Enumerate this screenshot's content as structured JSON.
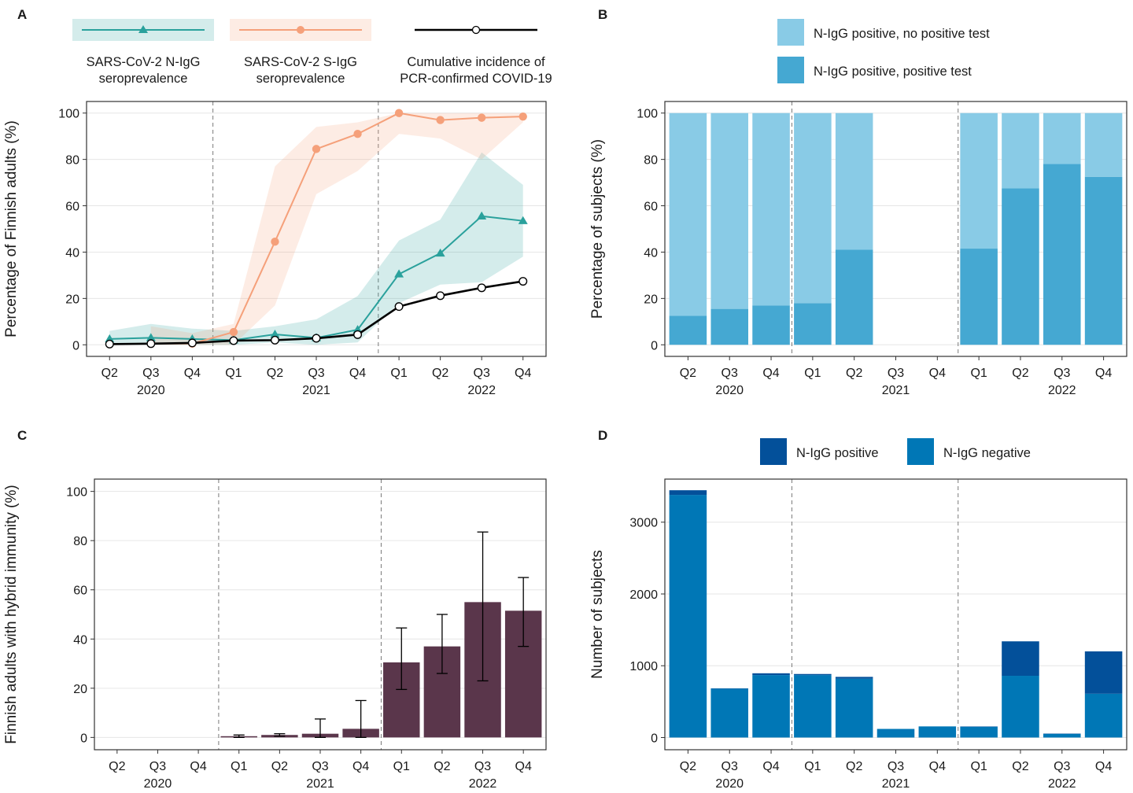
{
  "chart_data": [
    {
      "panel": "A",
      "type": "line",
      "categories": [
        "Q2",
        "Q3",
        "Q4",
        "Q1",
        "Q2",
        "Q3",
        "Q4",
        "Q1",
        "Q2",
        "Q3",
        "Q4"
      ],
      "years": [
        "2020",
        "2021",
        "2022"
      ],
      "ylabel": "Percentage of Finnish adults (%)",
      "ylim": [
        0,
        100
      ],
      "yticks": [
        "0",
        "20",
        "40",
        "60",
        "80",
        "100"
      ],
      "series": [
        {
          "name": "SARS-CoV-2 N-IgG seroprevalence",
          "name_lines": [
            "SARS-CoV-2 N-IgG",
            "seroprevalence"
          ],
          "color": "#2aa19c",
          "marker": "triangle",
          "values": [
            2.5,
            3,
            2.5,
            2,
            4.5,
            3,
            6.5,
            30.5,
            39.5,
            55.5,
            53.5
          ],
          "lower": [
            0,
            0,
            0,
            0,
            1,
            0,
            1,
            18,
            26,
            27,
            38
          ],
          "upper": [
            6,
            9,
            7,
            6,
            8,
            11,
            21,
            45,
            54,
            83,
            69
          ]
        },
        {
          "name": "SARS-CoV-2 S-IgG seroprevalence",
          "name_lines": [
            "SARS-CoV-2 S-IgG",
            "seroprevalence"
          ],
          "color": "#f5a07a",
          "marker": "circle",
          "values": [
            null,
            0.5,
            0.5,
            5.5,
            44.5,
            84.5,
            91,
            100,
            97,
            98,
            98.5
          ],
          "lower": [
            null,
            0,
            0,
            0,
            17,
            65,
            75,
            91,
            89,
            80,
            96
          ],
          "upper": [
            null,
            8,
            5,
            9,
            77,
            94,
            96,
            100,
            100,
            100,
            100
          ]
        },
        {
          "name": "Cumulative incidence of PCR-confirmed COVID-19",
          "name_lines": [
            "Cumulative incidence of",
            "PCR-confirmed COVID-19"
          ],
          "color": "#000000",
          "marker": "open-circle",
          "values": [
            0.3,
            0.5,
            0.8,
            1.8,
            2,
            2.8,
            4.4,
            16.5,
            21.2,
            24.6,
            27.4
          ]
        }
      ]
    },
    {
      "panel": "B",
      "type": "bar",
      "stacked": true,
      "categories": [
        "Q2",
        "Q3",
        "Q4",
        "Q1",
        "Q2",
        "Q3",
        "Q4",
        "Q1",
        "Q2",
        "Q3",
        "Q4"
      ],
      "years": [
        "2020",
        "2021",
        "2022"
      ],
      "ylabel": "Percentage of subjects (%)",
      "ylim": [
        0,
        100
      ],
      "yticks": [
        "0",
        "20",
        "40",
        "60",
        "80",
        "100"
      ],
      "series": [
        {
          "name": "N-IgG positive, positive test",
          "color": "#45a8d2",
          "values": [
            12.5,
            15.5,
            17,
            18,
            41,
            null,
            null,
            41.5,
            67.5,
            78,
            72.5
          ]
        },
        {
          "name": "N-IgG positive, no positive test",
          "color": "#89cbe6",
          "values": [
            87.5,
            84.5,
            83,
            82,
            59,
            null,
            null,
            58.5,
            32.5,
            22,
            27.5
          ]
        }
      ]
    },
    {
      "panel": "C",
      "type": "bar",
      "categories": [
        "Q2",
        "Q3",
        "Q4",
        "Q1",
        "Q2",
        "Q3",
        "Q4",
        "Q1",
        "Q2",
        "Q3",
        "Q4"
      ],
      "years": [
        "2020",
        "2021",
        "2022"
      ],
      "ylabel": "Finnish adults with hybrid immunity (%)",
      "ylim": [
        0,
        100
      ],
      "yticks": [
        "0",
        "20",
        "40",
        "60",
        "80",
        "100"
      ],
      "color": "#5a364b",
      "values": [
        null,
        null,
        null,
        0.5,
        1,
        1.5,
        3.5,
        30.5,
        37,
        55,
        51.5
      ],
      "lower": [
        null,
        null,
        null,
        0,
        0.5,
        0,
        0,
        19.5,
        26,
        23,
        37
      ],
      "upper": [
        null,
        null,
        null,
        1,
        1.5,
        7.5,
        15,
        44.5,
        50,
        83.5,
        65
      ]
    },
    {
      "panel": "D",
      "type": "bar",
      "stacked": true,
      "categories": [
        "Q2",
        "Q3",
        "Q4",
        "Q1",
        "Q2",
        "Q3",
        "Q4",
        "Q1",
        "Q2",
        "Q3",
        "Q4"
      ],
      "years": [
        "2020",
        "2021",
        "2022"
      ],
      "ylabel": "Number of subjects",
      "ylim": [
        0,
        3500
      ],
      "yticks": [
        "0",
        "1000",
        "2000",
        "3000"
      ],
      "series": [
        {
          "name": "N-IgG negative",
          "color": "#0077b6",
          "values": [
            3380,
            680,
            870,
            870,
            820,
            120,
            155,
            150,
            860,
            50,
            610
          ]
        },
        {
          "name": "N-IgG positive",
          "color": "#03509a",
          "values": [
            65,
            5,
            25,
            15,
            25,
            0,
            0,
            5,
            480,
            5,
            590
          ]
        }
      ]
    }
  ]
}
